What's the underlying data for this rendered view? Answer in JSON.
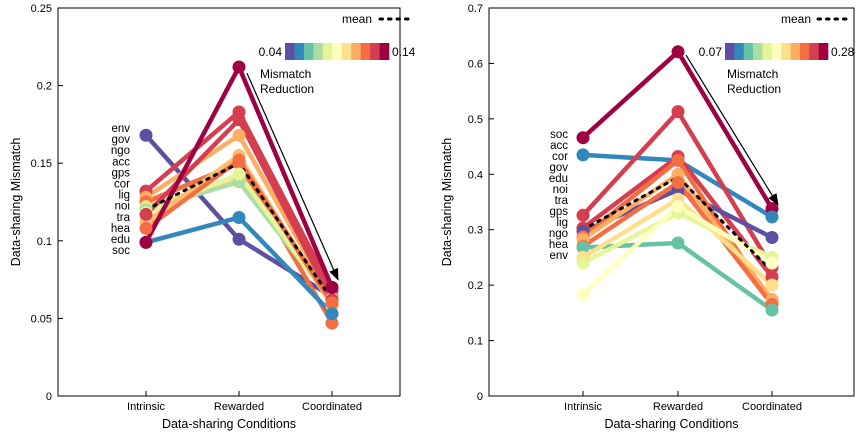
{
  "chart_data": [
    {
      "type": "line",
      "xlabel": "Data-sharing Conditions",
      "ylabel": "Data-sharing Mismatch",
      "categories": [
        "Intrinsic",
        "Rewarded",
        "Coordinated"
      ],
      "ylim": [
        0,
        0.25
      ],
      "yticks": [
        "0",
        "0.05",
        "0.1",
        "0.15",
        "0.2",
        "0.25"
      ],
      "yticks_values": [
        0,
        0.05,
        0.1,
        0.15,
        0.2,
        0.25
      ],
      "grid": false,
      "legend": {
        "label": "mean",
        "placement": "top-right"
      },
      "colorbar": {
        "min_label": "0.04",
        "max_label": "0.14",
        "title_line1": "Mismatch",
        "title_line2": "Reduction"
      },
      "label_order": [
        "env",
        "gov",
        "ngo",
        "acc",
        "gps",
        "cor",
        "lig",
        "noi",
        "tra",
        "hea",
        "edu",
        "soc"
      ],
      "series": [
        {
          "name": "env",
          "color": "#5E4FA2",
          "values": [
            0.168,
            0.101,
            0.064
          ]
        },
        {
          "name": "gov",
          "color": "#D53E4F",
          "values": [
            0.132,
            0.183,
            0.068
          ]
        },
        {
          "name": "ngo",
          "color": "#FDAE61",
          "values": [
            0.128,
            0.168,
            0.062
          ]
        },
        {
          "name": "acc",
          "color": "#F46D43",
          "values": [
            0.125,
            0.15,
            0.047
          ]
        },
        {
          "name": "gps",
          "color": "#FEE08B",
          "values": [
            0.122,
            0.14,
            0.063
          ]
        },
        {
          "name": "cor",
          "color": "#ABDDA4",
          "values": [
            0.12,
            0.138,
            0.061
          ]
        },
        {
          "name": "lig",
          "color": "#E6F598",
          "values": [
            0.118,
            0.143,
            0.06
          ]
        },
        {
          "name": "noi",
          "color": "#FDBF6F",
          "values": [
            0.112,
            0.155,
            0.058
          ]
        },
        {
          "name": "tra",
          "color": "#D53E4F",
          "values": [
            0.117,
            0.178,
            0.062
          ]
        },
        {
          "name": "hea",
          "color": "#F46D43",
          "values": [
            0.108,
            0.152,
            0.06
          ]
        },
        {
          "name": "edu",
          "color": "#3288BD",
          "values": [
            0.099,
            0.115,
            0.053
          ]
        },
        {
          "name": "soc",
          "color": "#9E0142",
          "values": [
            0.099,
            0.212,
            0.07
          ]
        },
        {
          "name": "mean",
          "color": "#000000",
          "dotted": true,
          "values": [
            0.12,
            0.15,
            0.062
          ]
        }
      ],
      "arrow": {
        "from": [
          "Rewarded",
          0.208
        ],
        "to": [
          "Coordinated",
          0.075
        ]
      }
    },
    {
      "type": "line",
      "xlabel": "Data-sharing Conditions",
      "ylabel": "Data-sharing Mismatch",
      "categories": [
        "Intrinsic",
        "Rewarded",
        "Coordinated"
      ],
      "ylim": [
        0,
        0.7
      ],
      "yticks": [
        "0",
        "0.1",
        "0.2",
        "0.3",
        "0.4",
        "0.5",
        "0.6",
        "0.7"
      ],
      "yticks_values": [
        0,
        0.1,
        0.2,
        0.3,
        0.4,
        0.5,
        0.6,
        0.7
      ],
      "grid": false,
      "legend": {
        "label": "mean",
        "placement": "top-right"
      },
      "colorbar": {
        "min_label": "0.07",
        "max_label": "0.28",
        "title_line1": "Mismatch",
        "title_line2": "Reduction"
      },
      "label_order": [
        "soc",
        "acc",
        "cor",
        "gov",
        "edu",
        "noi",
        "tra",
        "gps",
        "lig",
        "ngo",
        "hea",
        "env"
      ],
      "series": [
        {
          "name": "soc",
          "color": "#9E0142",
          "values": [
            0.466,
            0.621,
            0.338
          ]
        },
        {
          "name": "acc",
          "color": "#3288BD",
          "values": [
            0.435,
            0.425,
            0.323
          ]
        },
        {
          "name": "cor",
          "color": "#D53E4F",
          "values": [
            0.326,
            0.513,
            0.232
          ]
        },
        {
          "name": "gov",
          "color": "#D53E4F",
          "values": [
            0.303,
            0.432,
            0.215
          ]
        },
        {
          "name": "edu",
          "color": "#5E4FA2",
          "values": [
            0.297,
            0.372,
            0.286
          ]
        },
        {
          "name": "noi",
          "color": "#F46D43",
          "values": [
            0.287,
            0.425,
            0.168
          ]
        },
        {
          "name": "tra",
          "color": "#FDAE61",
          "values": [
            0.283,
            0.4,
            0.174
          ]
        },
        {
          "name": "gps",
          "color": "#F46D43",
          "values": [
            0.27,
            0.385,
            0.165
          ]
        },
        {
          "name": "lig",
          "color": "#66C2A5",
          "values": [
            0.268,
            0.276,
            0.155
          ]
        },
        {
          "name": "ngo",
          "color": "#FEE08B",
          "values": [
            0.25,
            0.355,
            0.2
          ]
        },
        {
          "name": "hea",
          "color": "#E6F598",
          "values": [
            0.24,
            0.33,
            0.25
          ]
        },
        {
          "name": "env",
          "color": "#FFFFBF",
          "values": [
            0.183,
            0.342,
            0.24
          ]
        },
        {
          "name": "mean",
          "color": "#000000",
          "dotted": true,
          "values": [
            0.3,
            0.395,
            0.225
          ]
        }
      ],
      "arrow": {
        "from": [
          "Rewarded",
          0.615
        ],
        "to": [
          "Coordinated",
          0.345
        ]
      }
    }
  ]
}
